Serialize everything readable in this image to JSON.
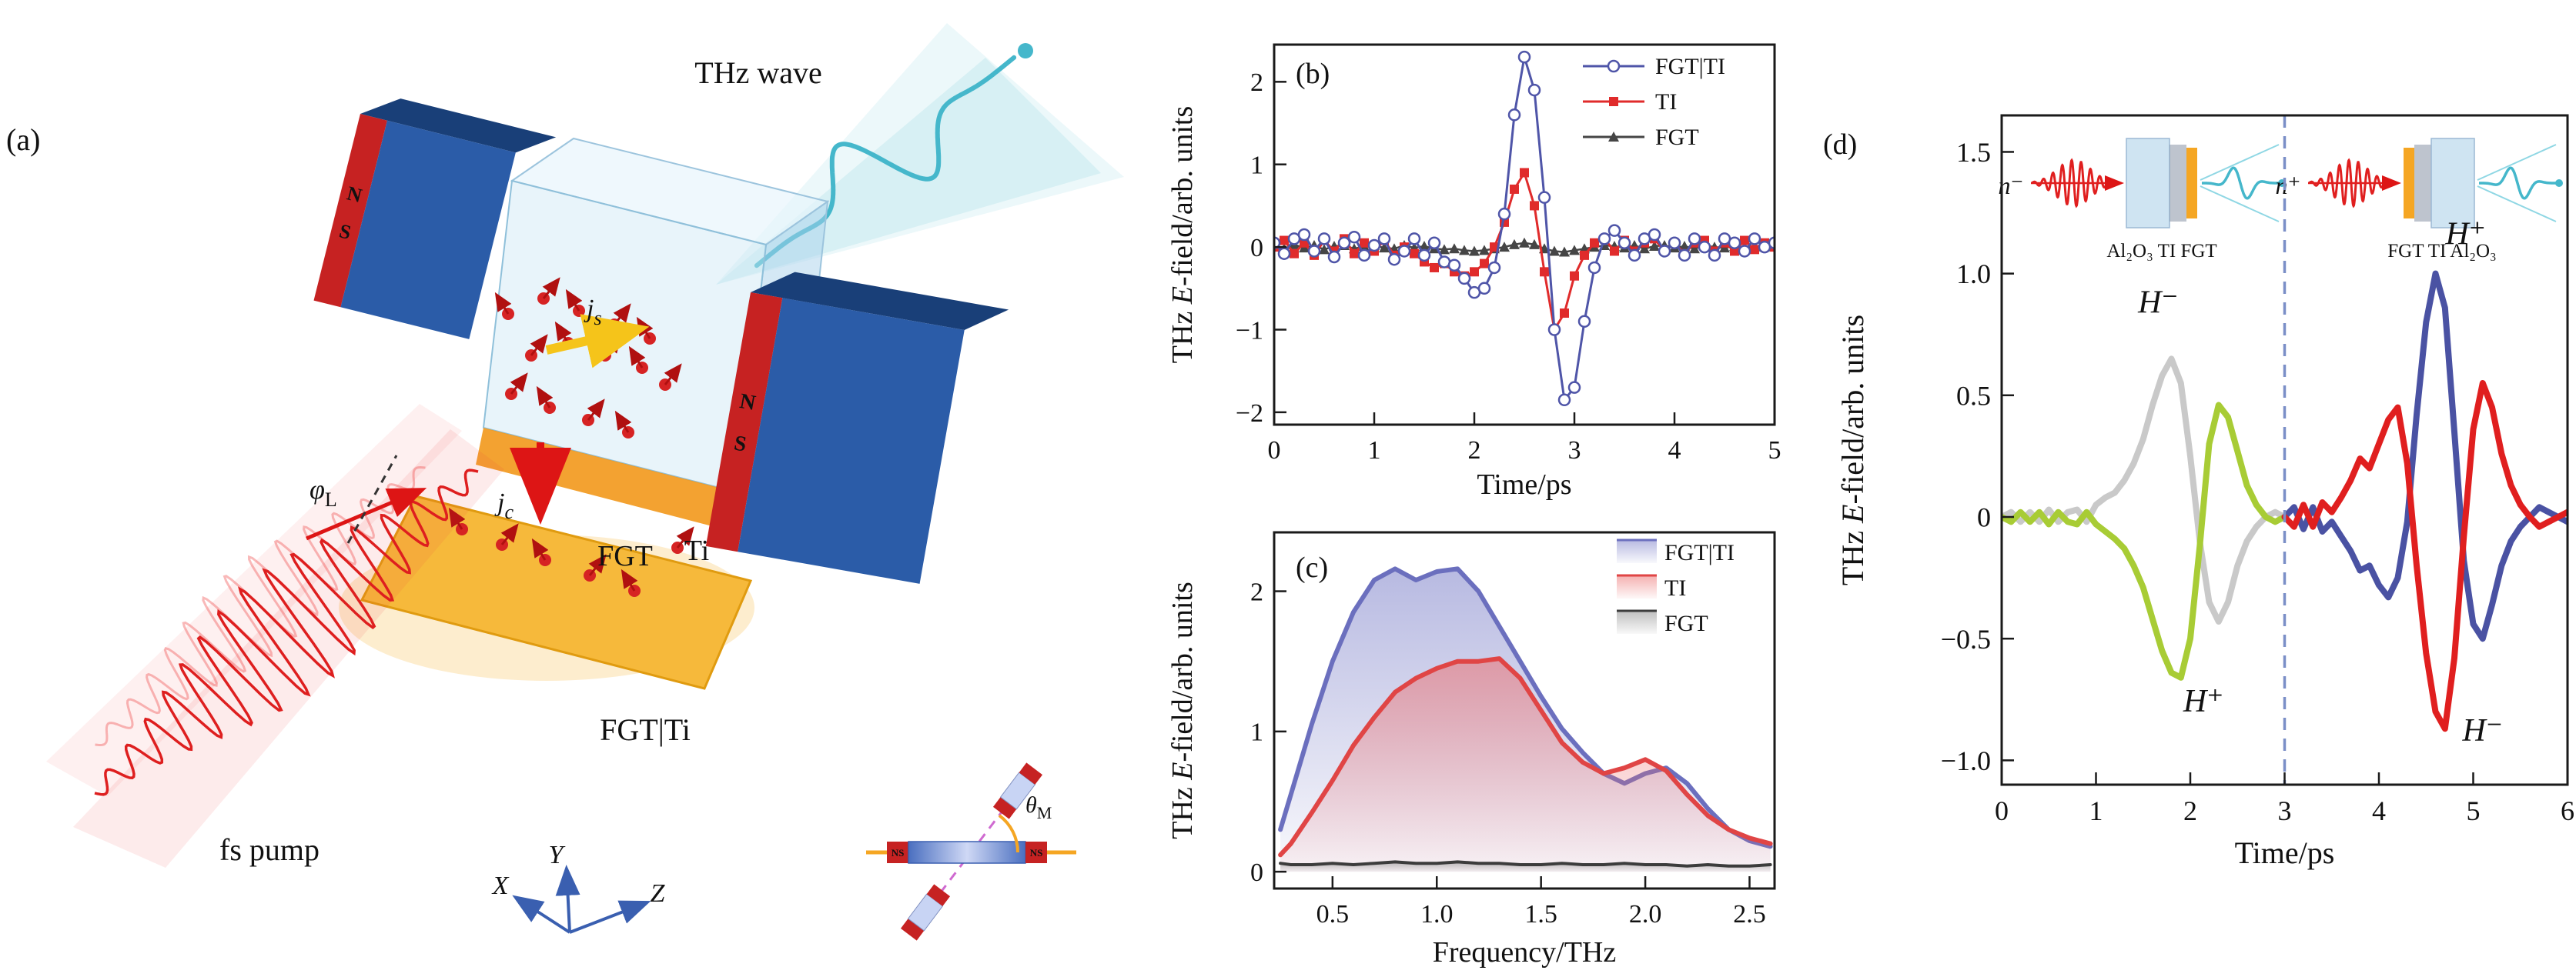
{
  "panel_a": {
    "label": "(a)",
    "thz_wave_label": "THz wave",
    "fs_pump_label": "fs pump",
    "sample_label": "FGT|Ti",
    "fgt_layer_label": "FGT",
    "ti_layer_label": "Ti",
    "phi": "φ",
    "phi_sub": "L",
    "js": "j",
    "js_sub": "s",
    "jc": "j",
    "jc_sub": "c",
    "theta": "θ",
    "theta_sub": "M",
    "axis_x": "X",
    "axis_y": "Y",
    "axis_z": "Z",
    "magnet_n": "N",
    "magnet_s": "S",
    "inset_ns": "NS"
  },
  "panel_d_insets": {
    "left_n": "n⁻",
    "right_n": "n⁺",
    "left_stack_label": "Al₂O₃ TI FGT",
    "right_stack_label": "FGT TI Al₂O₃"
  },
  "chart_data": [
    {
      "id": "b",
      "type": "line",
      "panel_label": "(b)",
      "xlabel": "Time/ps",
      "ylabel_parts": [
        "THz ",
        "E",
        "-field/arb. units"
      ],
      "xlim": [
        0,
        5
      ],
      "ylim": [
        -2.15,
        2.45
      ],
      "grid": false,
      "legend_position": "top-right",
      "xticks": [
        {
          "v": 0,
          "l": "0"
        },
        {
          "v": 1,
          "l": "1"
        },
        {
          "v": 2,
          "l": "2"
        },
        {
          "v": 3,
          "l": "3"
        },
        {
          "v": 4,
          "l": "4"
        },
        {
          "v": 5,
          "l": "5"
        }
      ],
      "yticks": [
        {
          "v": -2,
          "l": "−2"
        },
        {
          "v": -1,
          "l": "−1"
        },
        {
          "v": 0,
          "l": "0"
        },
        {
          "v": 1,
          "l": "1"
        },
        {
          "v": 2,
          "l": "2"
        }
      ],
      "legend": [
        {
          "label": "FGT|TI",
          "color": "#4f55a8",
          "marker": "circle-open"
        },
        {
          "label": "TI",
          "color": "#e02b2b",
          "marker": "square"
        },
        {
          "label": "FGT",
          "color": "#454545",
          "marker": "triangle"
        }
      ],
      "series": [
        {
          "name": "FGT",
          "color": "#454545",
          "width": 2.5,
          "marker": "triangle",
          "x": [
            0,
            0.1,
            0.2,
            0.3,
            0.4,
            0.5,
            0.6,
            0.7,
            0.8,
            0.9,
            1,
            1.1,
            1.2,
            1.3,
            1.4,
            1.5,
            1.6,
            1.7,
            1.8,
            1.9,
            2,
            2.1,
            2.2,
            2.3,
            2.4,
            2.5,
            2.6,
            2.7,
            2.8,
            2.9,
            3,
            3.1,
            3.2,
            3.3,
            3.4,
            3.5,
            3.6,
            3.7,
            3.8,
            3.9,
            4,
            4.1,
            4.2,
            4.3,
            4.4,
            4.5,
            4.6,
            4.7,
            4.8,
            4.9,
            5
          ],
          "y": [
            0.02,
            -0.02,
            0.03,
            -0.01,
            0.02,
            -0.03,
            0.01,
            0.02,
            -0.02,
            0.01,
            0.02,
            -0.01,
            -0.02,
            0.02,
            -0.01,
            0.01,
            -0.02,
            -0.03,
            -0.02,
            -0.04,
            -0.05,
            -0.04,
            -0.02,
            0,
            0.03,
            0.05,
            0.03,
            -0.02,
            -0.05,
            -0.06,
            -0.04,
            -0.02,
            0,
            0.02,
            0.01,
            -0.01,
            0.02,
            -0.02,
            0.01,
            0.02,
            -0.01,
            0.01,
            -0.02,
            0.02,
            0,
            -0.01,
            0.01,
            -0.02,
            0.01,
            0,
            0.01
          ]
        },
        {
          "name": "TI",
          "color": "#e02b2b",
          "width": 3,
          "marker": "square",
          "x": [
            0,
            0.1,
            0.2,
            0.3,
            0.4,
            0.5,
            0.6,
            0.7,
            0.8,
            0.9,
            1,
            1.1,
            1.2,
            1.3,
            1.4,
            1.5,
            1.6,
            1.7,
            1.8,
            1.9,
            2,
            2.1,
            2.2,
            2.3,
            2.4,
            2.5,
            2.6,
            2.7,
            2.8,
            2.9,
            3,
            3.1,
            3.2,
            3.3,
            3.4,
            3.5,
            3.6,
            3.7,
            3.8,
            3.9,
            4,
            4.1,
            4.2,
            4.3,
            4.4,
            4.5,
            4.6,
            4.7,
            4.8,
            4.9,
            5
          ],
          "y": [
            0,
            0.08,
            -0.08,
            0.05,
            -0.1,
            0.08,
            -0.05,
            0.1,
            -0.08,
            0.05,
            -0.05,
            0.08,
            -0.1,
            0,
            -0.08,
            -0.18,
            -0.25,
            -0.2,
            -0.3,
            -0.35,
            -0.3,
            -0.2,
            0,
            0.3,
            0.7,
            0.9,
            0.5,
            -0.3,
            -1,
            -0.8,
            -0.35,
            -0.1,
            0.05,
            0.1,
            -0.05,
            0.08,
            -0.05,
            0.05,
            0.1,
            -0.05,
            0.05,
            -0.08,
            0.05,
            0.08,
            -0.05,
            0.05,
            -0.05,
            0.08,
            -0.03,
            0.05,
            0
          ]
        },
        {
          "name": "FGT|TI",
          "color": "#4f55a8",
          "width": 3,
          "marker": "circle-open",
          "x": [
            0,
            0.1,
            0.2,
            0.3,
            0.4,
            0.5,
            0.6,
            0.7,
            0.8,
            0.9,
            1,
            1.1,
            1.2,
            1.3,
            1.4,
            1.5,
            1.6,
            1.7,
            1.8,
            1.9,
            2,
            2.1,
            2.2,
            2.3,
            2.4,
            2.5,
            2.6,
            2.7,
            2.8,
            2.9,
            3,
            3.1,
            3.2,
            3.3,
            3.4,
            3.5,
            3.6,
            3.7,
            3.8,
            3.9,
            4,
            4.1,
            4.2,
            4.3,
            4.4,
            4.5,
            4.6,
            4.7,
            4.8,
            4.9,
            5
          ],
          "y": [
            0.05,
            -0.08,
            0.1,
            0.15,
            -0.05,
            0.1,
            -0.12,
            0.05,
            0.12,
            -0.1,
            0.02,
            0.1,
            -0.15,
            -0.05,
            0.1,
            -0.1,
            0.05,
            -0.18,
            -0.22,
            -0.38,
            -0.55,
            -0.5,
            -0.25,
            0.4,
            1.6,
            2.3,
            1.9,
            0.6,
            -1,
            -1.85,
            -1.7,
            -0.9,
            -0.25,
            0.1,
            0.2,
            0.05,
            -0.1,
            0.1,
            0.15,
            -0.05,
            0.05,
            -0.1,
            0.1,
            0,
            -0.1,
            0.1,
            0.05,
            -0.05,
            0.1,
            0,
            0.05
          ]
        }
      ]
    },
    {
      "id": "c",
      "type": "area",
      "panel_label": "(c)",
      "xlabel": "Frequency/THz",
      "ylabel_parts": [
        "THz ",
        "E",
        "-field/arb. units"
      ],
      "xlim": [
        0.22,
        2.62
      ],
      "ylim": [
        -0.12,
        2.42
      ],
      "grid": false,
      "legend_position": "top-right",
      "xticks": [
        {
          "v": 0.5,
          "l": "0.5"
        },
        {
          "v": 1,
          "l": "1.0"
        },
        {
          "v": 1.5,
          "l": "1.5"
        },
        {
          "v": 2,
          "l": "2.0"
        },
        {
          "v": 2.5,
          "l": "2.5"
        }
      ],
      "yticks": [
        {
          "v": 0,
          "l": "0"
        },
        {
          "v": 1,
          "l": "1"
        },
        {
          "v": 2,
          "l": "2"
        }
      ],
      "legend": [
        {
          "label": "FGT|TI",
          "color": "#6b6fbe",
          "series_index": 0
        },
        {
          "label": "TI",
          "color": "#e04545",
          "series_index": 1
        },
        {
          "label": "FGT",
          "color": "#3c3c3c",
          "series_index": 2
        }
      ],
      "series": [
        {
          "name": "FGT|TI",
          "color": "#6b6fbe",
          "fill": "#7d81c9",
          "width": 6,
          "x": [
            0.25,
            0.3,
            0.4,
            0.5,
            0.6,
            0.7,
            0.8,
            0.9,
            1,
            1.1,
            1.2,
            1.3,
            1.4,
            1.5,
            1.6,
            1.7,
            1.8,
            1.9,
            2,
            2.1,
            2.2,
            2.3,
            2.4,
            2.5,
            2.6
          ],
          "y": [
            0.3,
            0.55,
            1.05,
            1.5,
            1.85,
            2.08,
            2.16,
            2.08,
            2.14,
            2.16,
            2,
            1.75,
            1.5,
            1.25,
            1.02,
            0.85,
            0.7,
            0.63,
            0.7,
            0.74,
            0.63,
            0.45,
            0.3,
            0.22,
            0.18
          ]
        },
        {
          "name": "TI",
          "color": "#e04545",
          "fill": "#ec7070",
          "width": 6,
          "x": [
            0.25,
            0.3,
            0.4,
            0.5,
            0.6,
            0.7,
            0.8,
            0.9,
            1,
            1.1,
            1.2,
            1.3,
            1.4,
            1.5,
            1.6,
            1.7,
            1.8,
            1.9,
            2,
            2.1,
            2.2,
            2.3,
            2.4,
            2.5,
            2.6
          ],
          "y": [
            0.12,
            0.2,
            0.42,
            0.65,
            0.9,
            1.1,
            1.28,
            1.38,
            1.45,
            1.5,
            1.5,
            1.52,
            1.38,
            1.15,
            0.92,
            0.78,
            0.7,
            0.74,
            0.8,
            0.72,
            0.55,
            0.4,
            0.3,
            0.24,
            0.2
          ]
        },
        {
          "name": "FGT",
          "color": "#3c3c3c",
          "fill": "#8a8a8a",
          "width": 4,
          "x": [
            0.25,
            0.3,
            0.4,
            0.5,
            0.6,
            0.7,
            0.8,
            0.9,
            1,
            1.1,
            1.2,
            1.3,
            1.4,
            1.5,
            1.6,
            1.7,
            1.8,
            1.9,
            2,
            2.1,
            2.2,
            2.3,
            2.4,
            2.5,
            2.6
          ],
          "y": [
            0.06,
            0.05,
            0.05,
            0.06,
            0.05,
            0.06,
            0.07,
            0.06,
            0.06,
            0.07,
            0.06,
            0.06,
            0.05,
            0.05,
            0.06,
            0.05,
            0.05,
            0.06,
            0.05,
            0.05,
            0.04,
            0.05,
            0.04,
            0.04,
            0.05
          ]
        }
      ]
    },
    {
      "id": "d",
      "type": "line",
      "panel_label": "(d)",
      "xlabel": "Time/ps",
      "ylabel_parts": [
        "THz ",
        "E",
        "-field/arb. units"
      ],
      "xlim": [
        0,
        6
      ],
      "ylim": [
        -1.1,
        1.65
      ],
      "grid": false,
      "vlines": [
        {
          "x": 3,
          "color": "#7b8fc7",
          "style": "dashed"
        }
      ],
      "xticks": [
        {
          "v": 0,
          "l": "0"
        },
        {
          "v": 1,
          "l": "1"
        },
        {
          "v": 2,
          "l": "2"
        },
        {
          "v": 3,
          "l": "3"
        },
        {
          "v": 4,
          "l": "4"
        },
        {
          "v": 5,
          "l": "5"
        },
        {
          "v": 6,
          "l": "6"
        }
      ],
      "yticks": [
        {
          "v": -1,
          "l": "−1.0"
        },
        {
          "v": -0.5,
          "l": "−0.5"
        },
        {
          "v": 0,
          "l": "0"
        },
        {
          "v": 0.5,
          "l": "0.5"
        },
        {
          "v": 1,
          "l": "1.0"
        },
        {
          "v": 1.5,
          "l": "1.5"
        }
      ],
      "annotations": [
        {
          "x": 1.66,
          "y": 0.84,
          "text": "H⁻"
        },
        {
          "x": 2.14,
          "y": -0.8,
          "text": "H⁺"
        },
        {
          "x": 4.92,
          "y": 1.12,
          "text": "H⁺"
        },
        {
          "x": 5.1,
          "y": -0.92,
          "text": "H⁻"
        }
      ],
      "series": [
        {
          "name": "n− H−",
          "color": "#c9c9c9",
          "width": 8,
          "x": [
            0,
            0.1,
            0.2,
            0.3,
            0.4,
            0.5,
            0.6,
            0.7,
            0.8,
            0.9,
            1,
            1.1,
            1.2,
            1.3,
            1.4,
            1.5,
            1.6,
            1.7,
            1.8,
            1.9,
            2,
            2.1,
            2.2,
            2.3,
            2.4,
            2.5,
            2.6,
            2.7,
            2.8,
            2.9,
            3
          ],
          "y": [
            0,
            0.02,
            -0.02,
            0.02,
            -0.02,
            0.03,
            -0.02,
            0.02,
            0.03,
            -0.02,
            0.05,
            0.08,
            0.1,
            0.15,
            0.22,
            0.32,
            0.46,
            0.58,
            0.65,
            0.55,
            0.25,
            -0.1,
            -0.35,
            -0.43,
            -0.35,
            -0.2,
            -0.1,
            -0.04,
            0,
            0.02,
            0
          ]
        },
        {
          "name": "n− H+",
          "color": "#a8cc35",
          "width": 8,
          "x": [
            0,
            0.1,
            0.2,
            0.3,
            0.4,
            0.5,
            0.6,
            0.7,
            0.8,
            0.9,
            1,
            1.1,
            1.2,
            1.3,
            1.4,
            1.5,
            1.6,
            1.7,
            1.8,
            1.9,
            2,
            2.1,
            2.2,
            2.3,
            2.4,
            2.5,
            2.6,
            2.7,
            2.8,
            2.9,
            3
          ],
          "y": [
            0,
            -0.02,
            0.02,
            -0.02,
            0.02,
            -0.03,
            0.02,
            -0.02,
            -0.03,
            0.02,
            -0.03,
            -0.06,
            -0.09,
            -0.13,
            -0.2,
            -0.29,
            -0.42,
            -0.55,
            -0.64,
            -0.66,
            -0.5,
            -0.12,
            0.3,
            0.46,
            0.41,
            0.27,
            0.13,
            0.05,
            0,
            -0.02,
            0
          ]
        },
        {
          "name": "n+ H+",
          "color": "#4a52a3",
          "width": 8,
          "x": [
            3,
            3.1,
            3.2,
            3.3,
            3.4,
            3.5,
            3.6,
            3.7,
            3.8,
            3.9,
            4,
            4.1,
            4.2,
            4.3,
            4.4,
            4.5,
            4.6,
            4.7,
            4.8,
            4.9,
            5,
            5.1,
            5.2,
            5.3,
            5.4,
            5.5,
            5.6,
            5.7,
            5.8,
            5.9,
            6
          ],
          "y": [
            0,
            0.04,
            -0.05,
            0.04,
            -0.06,
            -0.02,
            -0.08,
            -0.14,
            -0.22,
            -0.2,
            -0.28,
            -0.33,
            -0.25,
            -0.02,
            0.42,
            0.8,
            1,
            0.86,
            0.35,
            -0.18,
            -0.44,
            -0.5,
            -0.36,
            -0.2,
            -0.1,
            -0.04,
            0,
            0.04,
            0.02,
            0,
            -0.02
          ]
        },
        {
          "name": "n+ H−",
          "color": "#e01f1f",
          "width": 8,
          "x": [
            3,
            3.1,
            3.2,
            3.3,
            3.4,
            3.5,
            3.6,
            3.7,
            3.8,
            3.9,
            4,
            4.1,
            4.2,
            4.3,
            4.4,
            4.5,
            4.6,
            4.7,
            4.8,
            4.9,
            5,
            5.1,
            5.2,
            5.3,
            5.4,
            5.5,
            5.6,
            5.7,
            5.8,
            5.9,
            6
          ],
          "y": [
            0,
            -0.04,
            0.05,
            -0.04,
            0.06,
            0.02,
            0.08,
            0.15,
            0.24,
            0.2,
            0.3,
            0.4,
            0.45,
            0.22,
            -0.2,
            -0.56,
            -0.8,
            -0.87,
            -0.58,
            -0.08,
            0.36,
            0.55,
            0.45,
            0.26,
            0.13,
            0.05,
            0,
            -0.04,
            -0.02,
            0,
            0.02
          ]
        }
      ]
    }
  ]
}
